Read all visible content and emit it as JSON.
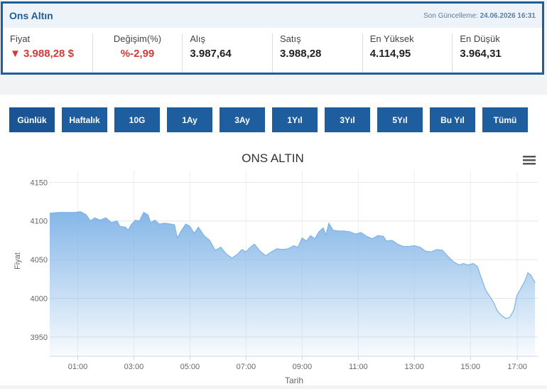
{
  "header": {
    "title": "Ons Altın",
    "updated_label": "Son Güncelleme:",
    "updated_value": "24.06.2026 16:31"
  },
  "stats": {
    "price_label": "Fiyat",
    "price_value": "▼ 3.988,28 $",
    "change_label": "Değişim(%)",
    "change_value": "%-2,99",
    "buy_label": "Alış",
    "buy_value": "3.987,64",
    "sell_label": "Satış",
    "sell_value": "3.988,28",
    "high_label": "En Yüksek",
    "high_value": "4.114,95",
    "low_label": "En Düşük",
    "low_value": "3.964,31"
  },
  "tabs": [
    "Günlük",
    "Haftalık",
    "10G",
    "1Ay",
    "3Ay",
    "1Yıl",
    "3Yıl",
    "5Yıl",
    "Bu Yıl",
    "Tümü"
  ],
  "active_tab": 0,
  "menu_icon": "hamburger-menu-icon",
  "colors": {
    "accent": "#1f5e9e",
    "negative": "#d23a3a",
    "series": "#7fb3e6"
  },
  "chart_data": {
    "type": "area",
    "title": "ONS ALTIN",
    "xlabel": "Tarih",
    "ylabel": "Fiyat",
    "ylim": [
      3925,
      4165
    ],
    "yticks": [
      3950,
      4000,
      4050,
      4100,
      4150
    ],
    "xlim": [
      0.0,
      17.4
    ],
    "xticks": [
      "01:00",
      "03:00",
      "05:00",
      "07:00",
      "09:00",
      "11:00",
      "13:00",
      "15:00",
      "17:00"
    ],
    "xtick_values": [
      1,
      3,
      5,
      7,
      9,
      11,
      13,
      15,
      16.67
    ],
    "grid": true,
    "series": [
      {
        "values": [
          [
            0.0,
            4110
          ],
          [
            0.3,
            4111
          ],
          [
            0.6,
            4111
          ],
          [
            0.9,
            4111
          ],
          [
            1.1,
            4112
          ],
          [
            1.3,
            4108
          ],
          [
            1.45,
            4100
          ],
          [
            1.6,
            4104
          ],
          [
            1.8,
            4101
          ],
          [
            2.0,
            4104
          ],
          [
            2.2,
            4098
          ],
          [
            2.4,
            4100
          ],
          [
            2.5,
            4093
          ],
          [
            2.7,
            4092
          ],
          [
            2.8,
            4088
          ],
          [
            2.9,
            4095
          ],
          [
            3.05,
            4101
          ],
          [
            3.2,
            4100
          ],
          [
            3.35,
            4111
          ],
          [
            3.5,
            4108
          ],
          [
            3.6,
            4098
          ],
          [
            3.75,
            4101
          ],
          [
            3.9,
            4096
          ],
          [
            4.1,
            4097
          ],
          [
            4.3,
            4096
          ],
          [
            4.45,
            4095
          ],
          [
            4.55,
            4078
          ],
          [
            4.7,
            4088
          ],
          [
            4.85,
            4096
          ],
          [
            5.0,
            4093
          ],
          [
            5.15,
            4084
          ],
          [
            5.3,
            4092
          ],
          [
            5.5,
            4081
          ],
          [
            5.7,
            4075
          ],
          [
            5.9,
            4062
          ],
          [
            6.1,
            4066
          ],
          [
            6.3,
            4057
          ],
          [
            6.5,
            4052
          ],
          [
            6.7,
            4057
          ],
          [
            6.85,
            4063
          ],
          [
            7.0,
            4060
          ],
          [
            7.15,
            4066
          ],
          [
            7.3,
            4070
          ],
          [
            7.5,
            4061
          ],
          [
            7.7,
            4055
          ],
          [
            7.9,
            4060
          ],
          [
            8.1,
            4064
          ],
          [
            8.3,
            4063
          ],
          [
            8.5,
            4064
          ],
          [
            8.7,
            4068
          ],
          [
            8.85,
            4066
          ],
          [
            9.0,
            4078
          ],
          [
            9.15,
            4074
          ],
          [
            9.3,
            4081
          ],
          [
            9.45,
            4077
          ],
          [
            9.6,
            4086
          ],
          [
            9.75,
            4091
          ],
          [
            9.85,
            4082
          ],
          [
            9.95,
            4097
          ],
          [
            10.1,
            4088
          ],
          [
            10.3,
            4087
          ],
          [
            10.5,
            4087
          ],
          [
            10.7,
            4086
          ],
          [
            10.9,
            4083
          ],
          [
            11.1,
            4085
          ],
          [
            11.3,
            4080
          ],
          [
            11.5,
            4077
          ],
          [
            11.7,
            4081
          ],
          [
            11.9,
            4080
          ],
          [
            12.0,
            4074
          ],
          [
            12.2,
            4075
          ],
          [
            12.4,
            4070
          ],
          [
            12.6,
            4067
          ],
          [
            12.8,
            4067
          ],
          [
            13.0,
            4068
          ],
          [
            13.2,
            4066
          ],
          [
            13.4,
            4061
          ],
          [
            13.6,
            4060
          ],
          [
            13.8,
            4063
          ],
          [
            14.0,
            4062
          ],
          [
            14.2,
            4054
          ],
          [
            14.4,
            4047
          ],
          [
            14.6,
            4043
          ],
          [
            14.75,
            4045
          ],
          [
            14.9,
            4043
          ],
          [
            15.1,
            4045
          ],
          [
            15.25,
            4041
          ],
          [
            15.35,
            4030
          ],
          [
            15.45,
            4020
          ],
          [
            15.55,
            4010
          ],
          [
            15.7,
            4002
          ],
          [
            15.85,
            3993
          ],
          [
            15.95,
            3984
          ],
          [
            16.1,
            3978
          ],
          [
            16.25,
            3974
          ],
          [
            16.4,
            3975
          ],
          [
            16.55,
            3985
          ],
          [
            16.65,
            4003
          ],
          [
            16.8,
            4013
          ],
          [
            16.95,
            4023
          ],
          [
            17.05,
            4033
          ],
          [
            17.15,
            4030
          ],
          [
            17.3,
            4020
          ]
        ]
      }
    ]
  }
}
